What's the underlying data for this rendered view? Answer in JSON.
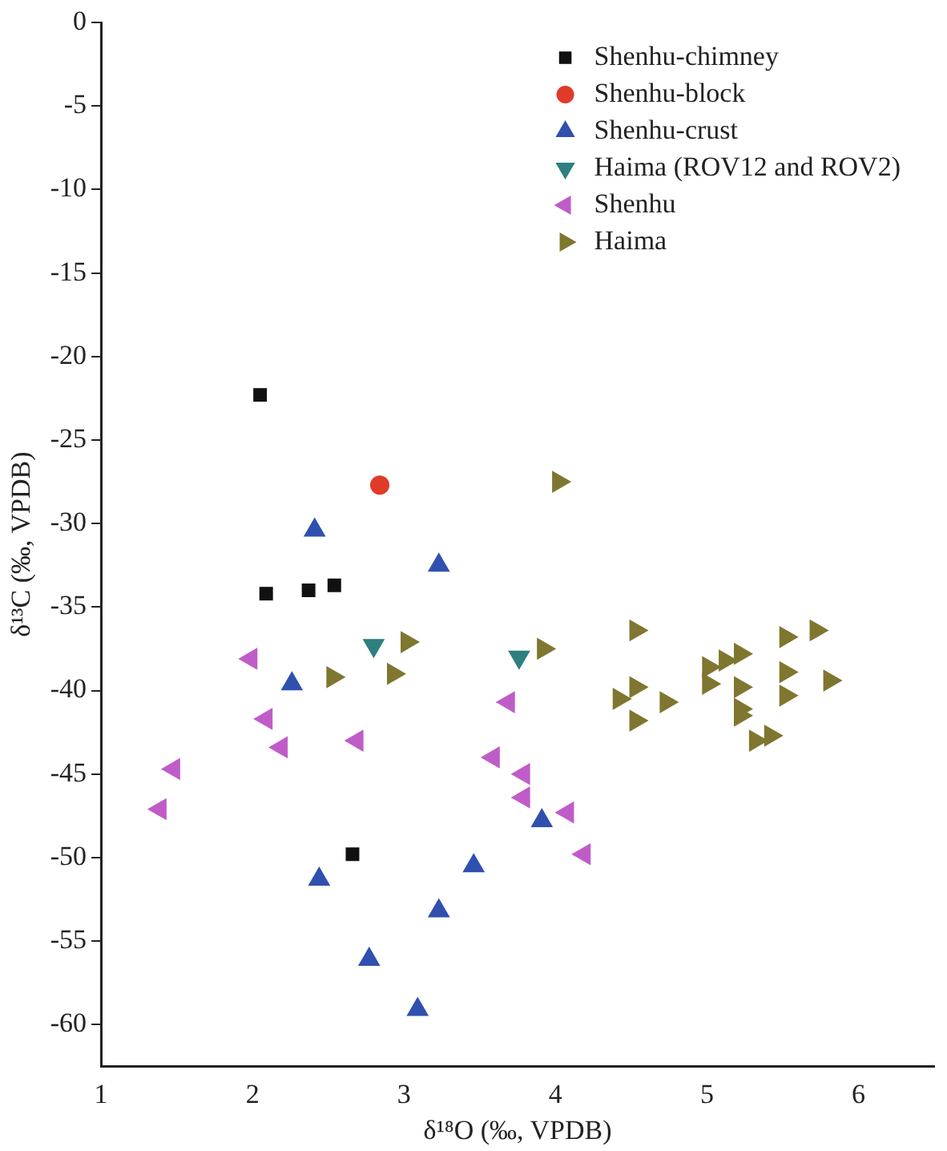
{
  "chart_data": {
    "type": "scatter",
    "xlabel": "δ¹⁸O (‰, VPDB)",
    "ylabel": "δ¹³C (‰, VPDB)",
    "xlim": [
      1,
      6.5
    ],
    "xticks": [
      1,
      2,
      3,
      4,
      5,
      6
    ],
    "ylim": [
      -62.5,
      0
    ],
    "yticks": [
      0,
      -5,
      -10,
      -15,
      -20,
      -25,
      -30,
      -35,
      -40,
      -45,
      -50,
      -55,
      -60
    ],
    "grid": false,
    "legend": "top right",
    "series": [
      {
        "name": "Shenhu-chimney",
        "color": "#111111",
        "marker": "square",
        "x": [
          2.05,
          2.09,
          2.37,
          2.54,
          2.66
        ],
        "values": [
          -22.3,
          -34.2,
          -34.0,
          -33.7,
          -49.8
        ]
      },
      {
        "name": "Shenhu-block",
        "color": "#e03a2a",
        "marker": "circle",
        "x": [
          2.84
        ],
        "values": [
          -27.7
        ]
      },
      {
        "name": "Shenhu-crust",
        "color": "#3050b0",
        "marker": "triangle",
        "x": [
          2.41,
          3.23,
          2.26,
          2.44,
          3.46,
          3.23,
          2.77,
          3.09,
          3.91
        ],
        "values": [
          -30.4,
          -32.5,
          -39.6,
          -51.3,
          -50.5,
          -53.2,
          -56.1,
          -59.1,
          -47.8
        ]
      },
      {
        "name": "Haima (ROV12 and ROV2)",
        "color": "#2e7f7f",
        "marker": "triangle-down",
        "x": [
          2.8,
          3.76
        ],
        "values": [
          -37.3,
          -38.0
        ]
      },
      {
        "name": "Shenhu",
        "color": "#c05cc8",
        "marker": "triangle-left",
        "x": [
          1.99,
          2.09,
          2.19,
          2.69,
          1.48,
          1.39,
          3.69,
          3.59,
          3.79,
          3.79,
          4.08,
          4.19
        ],
        "values": [
          -38.1,
          -41.7,
          -43.4,
          -43.0,
          -44.7,
          -47.1,
          -40.7,
          -44.0,
          -45.0,
          -46.4,
          -47.3,
          -49.8
        ]
      },
      {
        "name": "Haima",
        "color": "#7f7630",
        "marker": "triangle-right",
        "x": [
          3.02,
          2.53,
          2.93,
          4.02,
          3.92,
          4.53,
          4.42,
          4.53,
          4.73,
          4.53,
          5.01,
          5.01,
          5.12,
          5.22,
          5.22,
          5.22,
          5.22,
          5.32,
          5.42,
          5.52,
          5.52,
          5.52,
          5.72,
          5.81
        ],
        "values": [
          -37.1,
          -39.2,
          -39.0,
          -27.5,
          -37.5,
          -36.4,
          -40.5,
          -39.8,
          -40.7,
          -41.8,
          -38.6,
          -39.6,
          -38.2,
          -37.8,
          -39.8,
          -41.1,
          -41.5,
          -43.0,
          -42.7,
          -36.8,
          -38.9,
          -40.3,
          -36.4,
          -39.4
        ]
      }
    ]
  }
}
